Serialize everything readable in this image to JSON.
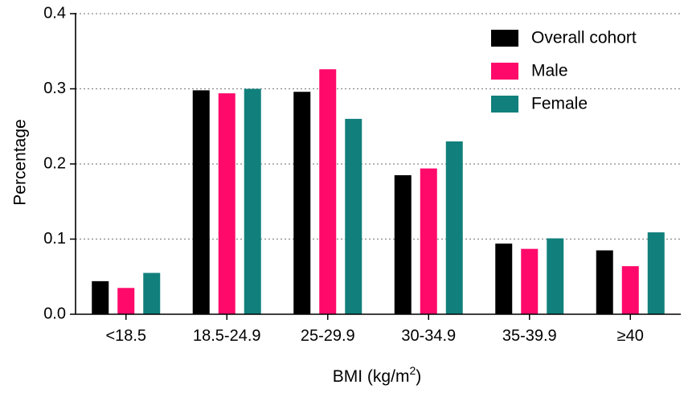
{
  "chart_data": {
    "type": "bar",
    "title": "",
    "xlabel": "BMI (kg/m",
    "xlabel_sup": "2",
    "xlabel_close": ")",
    "ylabel": "Percentage",
    "ylim": [
      0,
      0.4
    ],
    "yticks": [
      "0.0",
      "0.1",
      "0.2",
      "0.3",
      "0.4"
    ],
    "grid": "horizontal dotted",
    "legend_position": "top-right",
    "categories": [
      "<18.5",
      "18.5-24.9",
      "25-29.9",
      "30-34.9",
      "35-39.9",
      "≥40"
    ],
    "series": [
      {
        "name": "Overall cohort",
        "color": "#000000",
        "values": [
          0.044,
          0.298,
          0.296,
          0.185,
          0.094,
          0.085
        ]
      },
      {
        "name": "Male",
        "color": "#ff0a6b",
        "values": [
          0.035,
          0.294,
          0.326,
          0.194,
          0.087,
          0.064
        ]
      },
      {
        "name": "Female",
        "color": "#11807c",
        "values": [
          0.055,
          0.3,
          0.26,
          0.23,
          0.101,
          0.109
        ]
      }
    ]
  }
}
